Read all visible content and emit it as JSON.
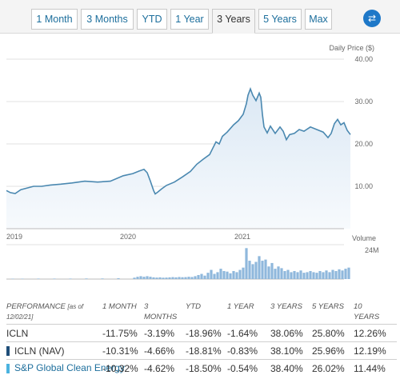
{
  "tabs": [
    {
      "label": "1 Month",
      "active": false
    },
    {
      "label": "3 Months",
      "active": false
    },
    {
      "label": "YTD",
      "active": false
    },
    {
      "label": "1 Year",
      "active": false
    },
    {
      "label": "3 Years",
      "active": true
    },
    {
      "label": "5 Years",
      "active": false
    },
    {
      "label": "Max",
      "active": false
    }
  ],
  "swap_icon": "swap-arrows-icon",
  "chart_data": [
    {
      "type": "line",
      "ylabel": "Daily Price ($)",
      "ylim": [
        0,
        40
      ],
      "yticks": [
        "40.00",
        "30.00",
        "20.00",
        "10.00"
      ],
      "xticks": [
        "2019",
        "2020",
        "2021"
      ],
      "series_color": "#4a88b0",
      "x": [
        0,
        5,
        11,
        18,
        26,
        34,
        44,
        55,
        68,
        82,
        98,
        114,
        130,
        146,
        158,
        166,
        172,
        176,
        180,
        184,
        186,
        189,
        194,
        200,
        210,
        220,
        230,
        238,
        246,
        254,
        258,
        262,
        266,
        270,
        276,
        284,
        290,
        296,
        300,
        302,
        305,
        308,
        312,
        316,
        318,
        320,
        322,
        326,
        330,
        336,
        342,
        346,
        350,
        354,
        360,
        366,
        372,
        380,
        388,
        396,
        402,
        406,
        410,
        414,
        418,
        422,
        426,
        430
      ],
      "y": [
        9.0,
        8.5,
        8.3,
        9.2,
        9.6,
        10.0,
        10.0,
        10.3,
        10.5,
        10.8,
        11.2,
        11.0,
        11.2,
        12.5,
        13.0,
        13.6,
        14.0,
        13.2,
        11.2,
        9.0,
        8.2,
        8.6,
        9.4,
        10.2,
        11.0,
        12.2,
        13.5,
        15.2,
        16.4,
        17.5,
        19.0,
        20.5,
        20.0,
        21.8,
        22.8,
        24.5,
        25.5,
        27.0,
        29.5,
        31.5,
        33.0,
        31.5,
        30.2,
        32.0,
        31.0,
        27.0,
        24.0,
        22.6,
        24.2,
        22.5,
        24.0,
        23.0,
        21.0,
        22.2,
        22.5,
        23.4,
        23.0,
        24.0,
        23.4,
        22.8,
        21.5,
        22.5,
        24.8,
        25.8,
        24.5,
        25.0,
        23.2,
        22.2
      ]
    },
    {
      "type": "bar",
      "ylabel": "Volume",
      "yticks": [
        "24M"
      ],
      "ylim": [
        0,
        30
      ],
      "bar_color": "#8fb8dc",
      "x": [
        8,
        20,
        40,
        60,
        80,
        100,
        120,
        140,
        160,
        164,
        168,
        172,
        176,
        180,
        184,
        188,
        192,
        196,
        200,
        204,
        208,
        212,
        216,
        220,
        224,
        228,
        232,
        236,
        240,
        244,
        248,
        252,
        256,
        260,
        264,
        268,
        272,
        276,
        280,
        284,
        288,
        292,
        296,
        300,
        304,
        308,
        312,
        316,
        320,
        324,
        328,
        332,
        336,
        340,
        344,
        348,
        352,
        356,
        360,
        364,
        368,
        372,
        376,
        380,
        384,
        388,
        392,
        396,
        400,
        404,
        408,
        412,
        416,
        420,
        424,
        428
      ],
      "values": [
        0.3,
        0.3,
        0.4,
        0.4,
        0.4,
        0.5,
        0.5,
        0.7,
        1.2,
        2.0,
        2.5,
        2.0,
        2.5,
        2.0,
        1.5,
        1.3,
        1.5,
        1.2,
        1.3,
        1.5,
        1.7,
        1.5,
        1.8,
        1.6,
        1.7,
        2.0,
        1.8,
        2.5,
        3.5,
        4.5,
        3.0,
        5.5,
        8.0,
        4.5,
        6.0,
        9.0,
        7.0,
        6.5,
        5.0,
        7.0,
        6.0,
        8.0,
        10.0,
        27.0,
        16.0,
        13.0,
        15.0,
        20.0,
        16.0,
        17.0,
        11.0,
        14.0,
        9.0,
        11.0,
        9.5,
        7.0,
        8.0,
        6.0,
        7.0,
        6.0,
        7.5,
        5.5,
        6.0,
        7.0,
        6.0,
        5.5,
        7.0,
        6.0,
        7.5,
        6.0,
        8.0,
        7.0,
        8.5,
        7.5,
        9.0,
        10.0
      ]
    }
  ],
  "performance": {
    "header": {
      "label": "PERFORMANCE",
      "as_of": "[as of",
      "as_of_date": "12/02/21]",
      "cols": [
        "1 MONTH",
        "3",
        "MONTHS",
        "YTD",
        "1 YEAR",
        "3 YEARS",
        "5 YEARS",
        "10",
        "YEARS"
      ]
    },
    "rows": [
      {
        "name": "ICLN",
        "bar_color": "",
        "values": [
          "-11.75%",
          "-3.19%",
          "-18.96%",
          "-1.64%",
          "38.06%",
          "25.80%",
          "12.26%"
        ]
      },
      {
        "name": "ICLN (NAV)",
        "bar_color": "#1f4e79",
        "values": [
          "-10.31%",
          "-4.66%",
          "-18.81%",
          "-0.83%",
          "38.10%",
          "25.96%",
          "12.19%"
        ]
      },
      {
        "name": "S&P Global Clean Energy",
        "bar_color": "#4bb3e0",
        "values": [
          "-10.32%",
          "-4.62%",
          "-18.50%",
          "-0.54%",
          "38.40%",
          "26.02%",
          "11.44%"
        ]
      }
    ]
  }
}
